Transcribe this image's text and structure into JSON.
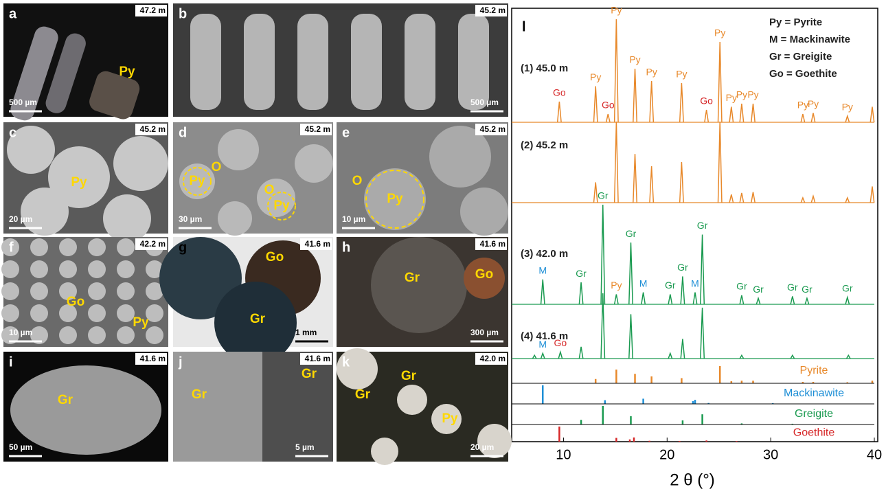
{
  "panels": [
    {
      "letter": "a",
      "depth": "47.2 m",
      "scale_bar": "500 µm",
      "labels": [
        "Py"
      ]
    },
    {
      "letter": "b",
      "depth": "45.2 m",
      "scale_bar": "500 µm",
      "labels": []
    },
    {
      "letter": "c",
      "depth": "45.2 m",
      "scale_bar": "20 µm",
      "labels": [
        "Py"
      ]
    },
    {
      "letter": "d",
      "depth": "45.2 m",
      "scale_bar": "30 µm",
      "labels": [
        "Py",
        "O",
        "O",
        "Py"
      ]
    },
    {
      "letter": "e",
      "depth": "45.2 m",
      "scale_bar": "10 µm",
      "labels": [
        "O",
        "Py"
      ]
    },
    {
      "letter": "f",
      "depth": "42.2 m",
      "scale_bar": "10 µm",
      "labels": [
        "Go",
        "Py"
      ]
    },
    {
      "letter": "g",
      "depth": "41.6 m",
      "scale_bar": "1 mm",
      "labels": [
        "Go",
        "Gr"
      ]
    },
    {
      "letter": "h",
      "depth": "41.6 m",
      "scale_bar": "300 µm",
      "labels": [
        "Gr",
        "Go"
      ]
    },
    {
      "letter": "i",
      "depth": "41.6 m",
      "scale_bar": "50 µm",
      "labels": [
        "Gr"
      ]
    },
    {
      "letter": "j",
      "depth": "41.6 m",
      "scale_bar": "5 µm",
      "labels": [
        "Gr",
        "Gr"
      ]
    },
    {
      "letter": "k",
      "depth": "42.0 m",
      "scale_bar": "20 µm",
      "labels": [
        "Gr",
        "Gr",
        "Py"
      ]
    }
  ],
  "chart_data": {
    "type": "xrd",
    "letter": "l",
    "xlabel": "2 θ (°)",
    "xlim": [
      5,
      40
    ],
    "xticks": [
      10,
      20,
      30,
      40
    ],
    "legend": [
      "Py = Pyrite",
      "M = Mackinawite",
      "Gr = Greigite",
      "Go = Goethite"
    ],
    "label_colors": {
      "Py": "#e8892b",
      "Go": "#d62728",
      "M": "#1e8fd6",
      "Gr": "#1a9a50"
    },
    "series": [
      {
        "name": "(1) 45.0 m",
        "color": "#e8892b",
        "x": [
          9.6,
          13.1,
          14.3,
          15.1,
          16.9,
          18.5,
          21.4,
          23.8,
          25.1,
          26.2,
          27.2,
          28.3,
          33.1,
          34.1,
          37.4,
          39.8
        ],
        "values": [
          20,
          35,
          8,
          100,
          52,
          40,
          38,
          12,
          78,
          15,
          18,
          18,
          8,
          9,
          6,
          15
        ],
        "labels": [
          "Go",
          "Py",
          "Go",
          "Py",
          "Py",
          "Py",
          "Py",
          "Go",
          "Py",
          "Py",
          "Py",
          "Py",
          "Py",
          "Py",
          "Py",
          null
        ]
      },
      {
        "name": "(2) 45.2 m",
        "color": "#e8892b",
        "x": [
          13.1,
          15.1,
          16.9,
          18.5,
          21.4,
          25.1,
          26.2,
          27.2,
          28.3,
          33.1,
          34.1,
          37.4,
          39.8
        ],
        "values": [
          25,
          100,
          60,
          45,
          50,
          100,
          10,
          12,
          13,
          6,
          8,
          6,
          20
        ]
      },
      {
        "name": "(3) 42.0 m",
        "color": "#1a9a50",
        "x": [
          8.0,
          11.7,
          13.8,
          15.1,
          16.5,
          17.7,
          20.3,
          21.5,
          22.7,
          23.4,
          27.2,
          28.8,
          32.1,
          33.5,
          37.4
        ],
        "values": [
          25,
          22,
          100,
          10,
          62,
          12,
          10,
          28,
          12,
          70,
          9,
          6,
          8,
          6,
          7
        ],
        "labels": [
          "M",
          "Gr",
          "Gr",
          "Py",
          "Gr",
          "M",
          "Gr",
          "Gr",
          "M",
          "Gr",
          "Gr",
          "Gr",
          "Gr",
          "Gr",
          "Gr"
        ]
      },
      {
        "name": "(4) 41.6 m",
        "color": "#1a9a50",
        "x": [
          7.2,
          8.0,
          9.7,
          11.7,
          13.8,
          16.5,
          20.3,
          21.5,
          23.4,
          27.2,
          32.1,
          37.5
        ],
        "values": [
          5,
          8,
          10,
          18,
          100,
          68,
          8,
          30,
          78,
          5,
          5,
          5
        ],
        "labels": [
          null,
          "M",
          "Go",
          null,
          null,
          null,
          null,
          null,
          null,
          null,
          null,
          null
        ]
      }
    ],
    "references": [
      {
        "name": "Pyrite",
        "color": "#e8892b",
        "x": [
          13.1,
          15.1,
          16.9,
          18.5,
          21.4,
          25.1,
          26.2,
          27.2,
          28.3,
          33.1,
          34.1,
          37.4,
          39.8
        ],
        "values": [
          25,
          80,
          55,
          40,
          30,
          100,
          12,
          15,
          15,
          8,
          8,
          6,
          15
        ]
      },
      {
        "name": "Mackinawite",
        "color": "#1e8fd6",
        "x": [
          8.0,
          14.0,
          17.7,
          22.5,
          22.7,
          24.0,
          30.2
        ],
        "values": [
          100,
          20,
          28,
          15,
          22,
          5,
          4
        ]
      },
      {
        "name": "Greigite",
        "color": "#1a9a50",
        "x": [
          11.7,
          13.8,
          16.5,
          21.5,
          23.4,
          27.2,
          32.1
        ],
        "values": [
          25,
          100,
          45,
          22,
          55,
          6,
          4
        ]
      },
      {
        "name": "Goethite",
        "color": "#d62728",
        "x": [
          9.6,
          15.1,
          16.4,
          16.8,
          18.3,
          21.2,
          23.8,
          26.7
        ],
        "values": [
          100,
          25,
          15,
          28,
          6,
          5,
          8,
          4
        ]
      }
    ]
  }
}
